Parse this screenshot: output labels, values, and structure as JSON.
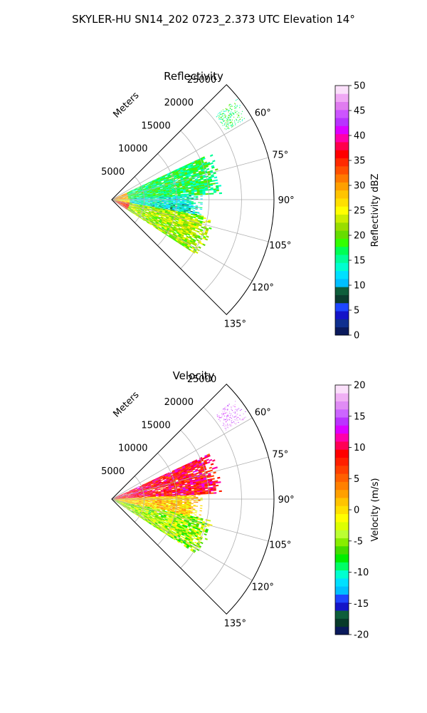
{
  "suptitle": "SKYLER-HU  SN14_202  0723_2.373 UTC Elevation 14°",
  "colors": {
    "reflectivity_scale": [
      "#0a1a5c",
      "#0f2f8f",
      "#1414c8",
      "#1e46ff",
      "#0b3b2e",
      "#0e5e3b",
      "#00bfff",
      "#00e0ff",
      "#00ffd0",
      "#00ff99",
      "#00ff55",
      "#33ff00",
      "#66dd00",
      "#99dd00",
      "#ccee00",
      "#ffff00",
      "#ffe000",
      "#ffc400",
      "#ffa000",
      "#ff7a00",
      "#ff5000",
      "#ff2a00",
      "#ff0000",
      "#ff004c",
      "#ff00aa",
      "#dd00ff",
      "#b833ff",
      "#cc55ff",
      "#e07cf0",
      "#f0a8f5",
      "#fbe0fb"
    ],
    "velocity_scale": [
      "#0a1a5c",
      "#083a2a",
      "#0e5e3b",
      "#1414c8",
      "#1e46ff",
      "#00bfff",
      "#00e0ff",
      "#00ffd0",
      "#00ff66",
      "#00ee00",
      "#44dd00",
      "#88ee00",
      "#bbff33",
      "#ddff00",
      "#ffff00",
      "#ffe000",
      "#ffc400",
      "#ffa000",
      "#ff8000",
      "#ff6000",
      "#ff4000",
      "#ff2000",
      "#ff0000",
      "#ff0055",
      "#ff00aa",
      "#dd00ff",
      "#bb33ff",
      "#cc66ff",
      "#e08cf5",
      "#f0b0f5",
      "#fbe0fb"
    ]
  },
  "chart_data": [
    {
      "type": "heatmap",
      "projection": "polar-sector",
      "title": "Reflectivity",
      "radial_axis_label": "Meters",
      "radial_ticks": [
        5000,
        10000,
        15000,
        20000,
        25000
      ],
      "radial_tick_labels": [
        "5000",
        "10000",
        "15000",
        "20000",
        "25000"
      ],
      "rlim": [
        0,
        25000
      ],
      "azimuth_range_deg": [
        45,
        135
      ],
      "azimuth_ticks": [
        "60°",
        "75°",
        "90°",
        "105°",
        "120°",
        "135°"
      ],
      "grid": true,
      "colorbar": {
        "label": "Reflectivity dBZ",
        "range": [
          0,
          50
        ],
        "ticks": [
          "0",
          "5",
          "10",
          "15",
          "20",
          "25",
          "30",
          "35",
          "40",
          "45",
          "50"
        ],
        "position": "right"
      },
      "echo_coverage_m": [
        {
          "azimuth_deg": [
            65,
            87
          ],
          "range_m": [
            0,
            17000
          ],
          "typical_value": 17
        },
        {
          "azimuth_deg": [
            87,
            100
          ],
          "range_m": [
            0,
            14000
          ],
          "typical_value": 13
        },
        {
          "azimuth_deg": [
            100,
            123
          ],
          "range_m": [
            0,
            16000
          ],
          "typical_value": 22
        },
        {
          "azimuth_deg": [
            51,
            59
          ],
          "range_m": [
            20500,
            25000
          ],
          "typical_value": 17
        }
      ]
    },
    {
      "type": "heatmap",
      "projection": "polar-sector",
      "title": "Velocity",
      "radial_axis_label": "Meters",
      "radial_ticks": [
        5000,
        10000,
        15000,
        20000,
        25000
      ],
      "radial_tick_labels": [
        "5000",
        "10000",
        "15000",
        "20000",
        "25000"
      ],
      "rlim": [
        0,
        25000
      ],
      "azimuth_range_deg": [
        45,
        135
      ],
      "azimuth_ticks": [
        "60°",
        "75°",
        "90°",
        "105°",
        "120°",
        "135°"
      ],
      "grid": true,
      "colorbar": {
        "label": "Velocity (m/s)",
        "range": [
          -20,
          20
        ],
        "ticks": [
          "-20",
          "-15",
          "-10",
          "-5",
          "0",
          "5",
          "10",
          "15",
          "20"
        ],
        "position": "right"
      },
      "echo_coverage_m": [
        {
          "azimuth_deg": [
            65,
            87
          ],
          "range_m": [
            0,
            17000
          ],
          "typical_value": 9
        },
        {
          "azimuth_deg": [
            87,
            102
          ],
          "range_m": [
            0,
            14000
          ],
          "typical_value": 1
        },
        {
          "azimuth_deg": [
            102,
            123
          ],
          "range_m": [
            0,
            16000
          ],
          "typical_value": -4
        },
        {
          "azimuth_deg": [
            51,
            59
          ],
          "range_m": [
            20500,
            25000
          ],
          "typical_value": 17
        }
      ]
    }
  ]
}
